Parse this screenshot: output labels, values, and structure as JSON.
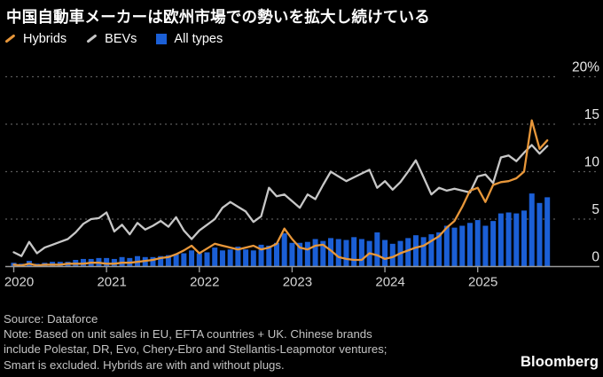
{
  "title": "中国自動車メーカーは欧州市場での勢いを拡大し続けている",
  "legend": [
    {
      "label": "Hybrids",
      "color": "#e8973a",
      "icon": "slash"
    },
    {
      "label": "BEVs",
      "color": "#c7c7c7",
      "icon": "slash"
    },
    {
      "label": "All types",
      "color": "#1b5fd6",
      "icon": "square"
    }
  ],
  "source_note": {
    "line1": "Source: Dataforce",
    "line2": "Note: Based on unit sales in EU, EFTA countries + UK. Chinese brands",
    "line3": "include Polestar, DR, Evo, Chery-Ebro and Stellantis-Leapmotor ventures;",
    "line4": "Smart is excluded. Hybrids are with and without plugs."
  },
  "logo": "Bloomberg",
  "colors": {
    "background": "#000000",
    "hybrids": "#e8973a",
    "bevs": "#c7c7c7",
    "all_types": "#1b5fd6",
    "gridline": "#5a5a5a",
    "baseline": "#9a9a9a",
    "axis_text": "#e8e8e8",
    "year_text": "#d6d6d6"
  },
  "chart_data": {
    "type": "bar",
    "note": "market share of Chinese car brands in Europe, monthly, percent; bars = All types, lines = Hybrids and BEVs",
    "unit": "%",
    "ylim": [
      0,
      20
    ],
    "yticks": [
      0,
      5,
      10,
      15,
      20
    ],
    "ytick_labels": [
      "0",
      "5",
      "10",
      "15",
      "20%"
    ],
    "yaxis_side": "right",
    "grid": "dashed-horizontal",
    "xticks": [
      "2020",
      "2021",
      "2022",
      "2023",
      "2024",
      "2025"
    ],
    "x": [
      "2020-01",
      "2020-02",
      "2020-03",
      "2020-04",
      "2020-05",
      "2020-06",
      "2020-07",
      "2020-08",
      "2020-09",
      "2020-10",
      "2020-11",
      "2020-12",
      "2021-01",
      "2021-02",
      "2021-03",
      "2021-04",
      "2021-05",
      "2021-06",
      "2021-07",
      "2021-08",
      "2021-09",
      "2021-10",
      "2021-11",
      "2021-12",
      "2022-01",
      "2022-02",
      "2022-03",
      "2022-04",
      "2022-05",
      "2022-06",
      "2022-07",
      "2022-08",
      "2022-09",
      "2022-10",
      "2022-11",
      "2022-12",
      "2023-01",
      "2023-02",
      "2023-03",
      "2023-04",
      "2023-05",
      "2023-06",
      "2023-07",
      "2023-08",
      "2023-09",
      "2023-10",
      "2023-11",
      "2023-12",
      "2024-01",
      "2024-02",
      "2024-03",
      "2024-04",
      "2024-05",
      "2024-06",
      "2024-07",
      "2024-08",
      "2024-09",
      "2024-10",
      "2024-11",
      "2024-12",
      "2025-01",
      "2025-02",
      "2025-03",
      "2025-04",
      "2025-05",
      "2025-06",
      "2025-07",
      "2025-08",
      "2025-09",
      "2025-10"
    ],
    "series": [
      {
        "name": "All types",
        "type": "bar",
        "color": "#1b5fd6",
        "values": [
          0.4,
          0.3,
          0.6,
          0.3,
          0.4,
          0.5,
          0.5,
          0.5,
          0.7,
          0.8,
          0.8,
          0.9,
          0.9,
          0.8,
          1.0,
          0.9,
          1.1,
          1.0,
          1.0,
          1.1,
          1.2,
          1.3,
          1.4,
          1.7,
          1.4,
          1.5,
          2.0,
          1.7,
          1.8,
          2.1,
          1.8,
          1.7,
          2.3,
          2.2,
          2.5,
          3.5,
          2.5,
          2.5,
          2.6,
          2.9,
          2.7,
          3.0,
          2.9,
          2.8,
          3.1,
          2.9,
          2.7,
          3.6,
          2.8,
          2.4,
          2.7,
          3.0,
          3.3,
          3.1,
          3.4,
          3.6,
          4.3,
          4.1,
          4.3,
          4.6,
          4.9,
          4.3,
          4.8,
          5.6,
          5.7,
          5.6,
          5.9,
          7.7,
          6.7,
          7.3
        ]
      },
      {
        "name": "BEVs",
        "type": "line",
        "color": "#c7c7c7",
        "values": [
          1.5,
          1.1,
          2.6,
          1.4,
          2.0,
          2.3,
          2.6,
          2.9,
          3.6,
          4.5,
          5.0,
          5.1,
          5.7,
          3.7,
          4.4,
          3.4,
          4.6,
          3.9,
          4.3,
          4.8,
          4.2,
          5.2,
          3.8,
          2.9,
          3.8,
          4.4,
          5.0,
          6.2,
          6.8,
          6.3,
          5.8,
          4.7,
          5.3,
          8.3,
          7.4,
          7.6,
          6.9,
          6.2,
          7.6,
          7.1,
          8.6,
          10.0,
          9.5,
          9.0,
          9.4,
          9.8,
          10.2,
          8.3,
          9.0,
          8.1,
          8.9,
          10.0,
          11.2,
          9.4,
          7.6,
          8.3,
          8.0,
          8.2,
          8.0,
          7.8,
          9.5,
          9.7,
          8.8,
          11.5,
          11.7,
          11.1,
          12.0,
          12.8,
          11.9,
          12.7
        ]
      },
      {
        "name": "Hybrids",
        "type": "line",
        "color": "#e8973a",
        "values": [
          0.2,
          0.1,
          0.3,
          0.1,
          0.2,
          0.2,
          0.2,
          0.3,
          0.3,
          0.3,
          0.4,
          0.4,
          0.3,
          0.3,
          0.4,
          0.4,
          0.5,
          0.6,
          0.7,
          0.9,
          1.0,
          1.3,
          1.7,
          2.2,
          1.4,
          1.9,
          2.4,
          2.2,
          2.0,
          1.8,
          2.0,
          2.2,
          1.8,
          2.0,
          2.4,
          4.0,
          2.9,
          2.0,
          1.8,
          2.2,
          2.3,
          1.7,
          1.0,
          0.8,
          0.7,
          0.7,
          1.4,
          1.2,
          0.8,
          1.0,
          1.4,
          1.7,
          2.0,
          2.2,
          2.7,
          3.2,
          4.1,
          4.8,
          6.3,
          8.0,
          8.3,
          6.8,
          8.6,
          8.9,
          9.0,
          9.3,
          10.0,
          15.4,
          12.4,
          13.3
        ]
      }
    ]
  }
}
